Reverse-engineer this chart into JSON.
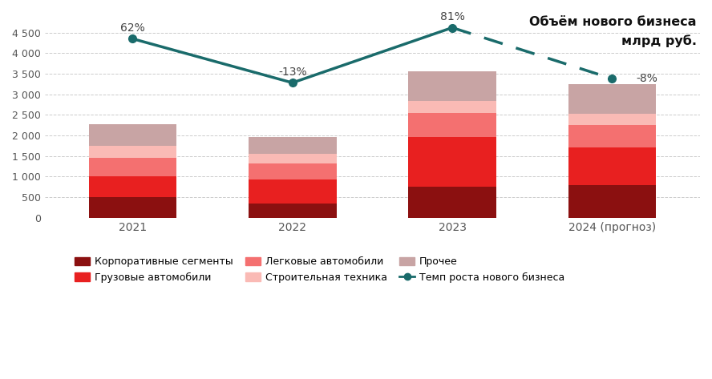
{
  "categories": [
    "2021",
    "2022",
    "2023",
    "2024 (прогноз)"
  ],
  "segments": {
    "Корпоративные сегменты": [
      500,
      350,
      750,
      800
    ],
    "Грузовые автомобили": [
      500,
      570,
      1220,
      900
    ],
    "Легковые автомобили": [
      460,
      390,
      570,
      560
    ],
    "Строительная техника": [
      280,
      240,
      290,
      260
    ],
    "Прочее": [
      530,
      410,
      730,
      730
    ]
  },
  "segment_colors": {
    "Корпоративные сегменты": "#8B1010",
    "Грузовые автомобили": "#E82020",
    "Легковые автомобили": "#F47070",
    "Строительная техника": "#FABAB5",
    "Прочее": "#C8A4A4"
  },
  "line_values": [
    4350,
    3280,
    4620,
    3380
  ],
  "line_labels": [
    "62%",
    "-13%",
    "81%",
    "-8%"
  ],
  "line_color": "#1A6B6B",
  "title": "Объём нового бизнеса\nмлрд руб.",
  "ylim": [
    0,
    5000
  ],
  "yticks": [
    0,
    500,
    1000,
    1500,
    2000,
    2500,
    3000,
    3500,
    4000,
    4500
  ],
  "bg_color": "#FFFFFF",
  "grid_color": "#CCCCCC"
}
